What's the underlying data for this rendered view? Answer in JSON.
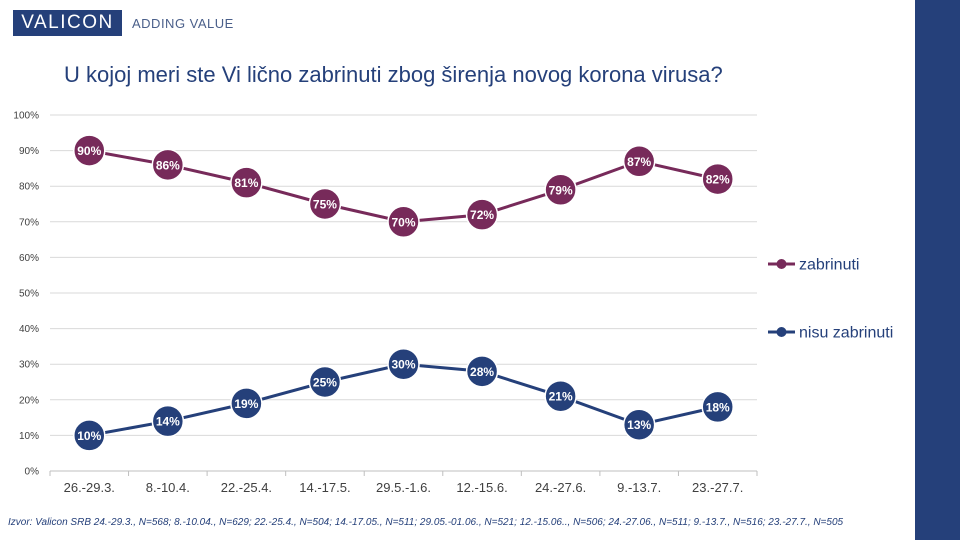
{
  "brand": {
    "logo": "VALICON",
    "tagline": "ADDING VALUE",
    "color": "#25407a"
  },
  "footnote": "Izvor: Valicon SRB 24.-29.3., N=568; 8.-10.04., N=629; 22.-25.4., N=504; 14.-17.05., N=511; 29.05.-01.06., N=521; 12.-15.06.., N=506; 24.-27.06., N=511; 9.-13.7., N=516; 23.-27.7., N=505",
  "chart_data": {
    "type": "line",
    "title": "U kojoj meri ste Vi lično zabrinuti zbog širenja novog korona virusa?",
    "categories": [
      "26.-29.3.",
      "8.-10.4.",
      "22.-25.4.",
      "14.-17.5.",
      "29.5.-1.6.",
      "12.-15.6.",
      "24.-27.6.",
      "9.-13.7.",
      "23.-27.7."
    ],
    "ylim": [
      0,
      100
    ],
    "yticks": [
      "0%",
      "10%",
      "20%",
      "30%",
      "40%",
      "50%",
      "60%",
      "70%",
      "80%",
      "90%",
      "100%"
    ],
    "grid": true,
    "legend_position": "right",
    "series": [
      {
        "name": "zabrinuti",
        "color": "#772a5a",
        "values": [
          90,
          86,
          81,
          75,
          70,
          72,
          79,
          87,
          82
        ],
        "labels": [
          "90%",
          "86%",
          "81%",
          "75%",
          "70%",
          "72%",
          "79%",
          "87%",
          "82%"
        ]
      },
      {
        "name": "nisu zabrinuti",
        "color": "#25407a",
        "values": [
          10,
          14,
          19,
          25,
          30,
          28,
          21,
          13,
          18
        ],
        "labels": [
          "10%",
          "14%",
          "19%",
          "25%",
          "30%",
          "28%",
          "21%",
          "13%",
          "18%"
        ]
      }
    ]
  }
}
